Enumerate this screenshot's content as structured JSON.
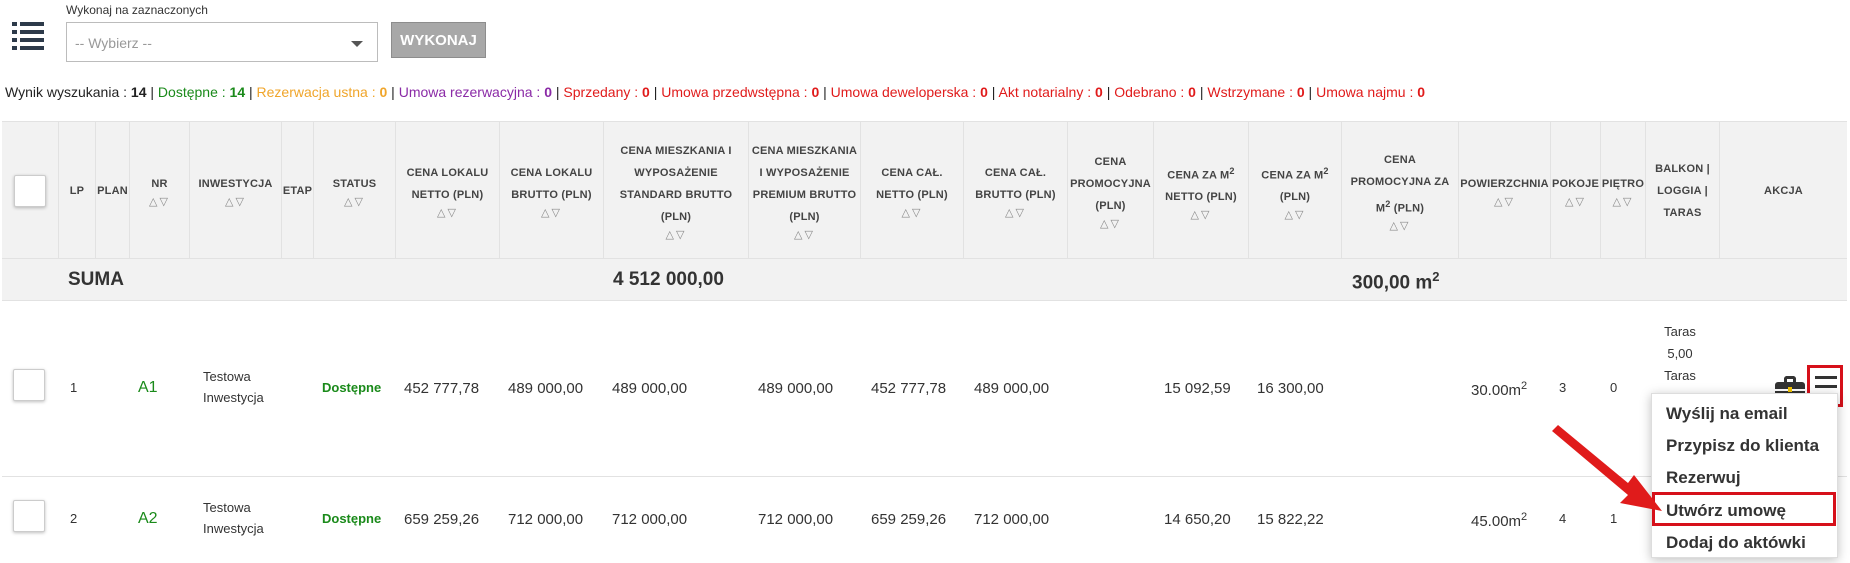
{
  "toolbar": {
    "bulk_label": "Wykonaj na zaznaczonych",
    "bulk_select_value": "-- Wybierz --",
    "execute_label": "WYKONAJ"
  },
  "summary": {
    "results_label": "Wynik wyszukania : ",
    "results_count": "14",
    "sep": " | ",
    "items": [
      {
        "label": "Dostępne : ",
        "count": "14",
        "color": "#1a8a1a"
      },
      {
        "label": "Rezerwacja ustna : ",
        "count": "0",
        "color": "#f0a52a"
      },
      {
        "label": "Umowa rezerwacyjna : ",
        "count": "0",
        "color": "#8a2aa6"
      },
      {
        "label": "Sprzedany : ",
        "count": "0",
        "color": "#e01b1b"
      },
      {
        "label": "Umowa przedwstępna : ",
        "count": "0",
        "color": "#e01b1b"
      },
      {
        "label": "Umowa deweloperska : ",
        "count": "0",
        "color": "#e01b1b"
      },
      {
        "label": "Akt notarialny : ",
        "count": "0",
        "color": "#e01b1b"
      },
      {
        "label": "Odebrano : ",
        "count": "0",
        "color": "#e01b1b"
      },
      {
        "label": "Wstrzymane : ",
        "count": "0",
        "color": "#e01b1b"
      },
      {
        "label": "Umowa najmu : ",
        "count": "0",
        "color": "#e01b1b"
      }
    ]
  },
  "columns": {
    "lp": "LP",
    "plan": "PLAN",
    "nr": "NR",
    "inwestycja": "INWESTYCJA",
    "etap": "ETAP",
    "status": "STATUS",
    "cena_lokalu_netto": "CENA LOKALU NETTO (PLN)",
    "cena_lokalu_brutto": "CENA LOKALU BRUTTO (PLN)",
    "cena_standard": "CENA MIESZKANIA I WYPOSAŻENIE STANDARD BRUTTO (PLN)",
    "cena_premium": "CENA MIESZKANIA I WYPOSAŻENIE PREMIUM BRUTTO (PLN)",
    "cena_cal_netto": "CENA CAŁ. NETTO (PLN)",
    "cena_cal_brutto": "CENA CAŁ. BRUTTO (PLN)",
    "cena_promocyjna": "CENA PROMOCYJNA (PLN)",
    "cena_m2_netto_a": "CENA ZA M",
    "cena_m2_netto_b": " NETTO (PLN)",
    "cena_m2_a": "CENA ZA M",
    "cena_m2_b": " (PLN)",
    "cena_prom_m2_a": "CENA PROMOCYJNA ZA M",
    "cena_prom_m2_b": " (PLN)",
    "sup2": "2",
    "powierzchnia": "POWIERZCHNIA",
    "pokoje": "POKOJE",
    "pietro": "PIĘTRO",
    "balkon": "BALKON | LOGGIA | TARAS",
    "akcja": "AKCJA",
    "sort_glyph": "△▽"
  },
  "suma": {
    "label": "SUMA",
    "total_price": "4 512 000,00",
    "total_area": "300,00 m",
    "area_sup": "2"
  },
  "rows": [
    {
      "lp": "1",
      "nr": "A1",
      "inwestycja_1": "Testowa",
      "inwestycja_2": "Inwestycja",
      "status": "Dostępne",
      "cena_lokalu_netto": "452 777,78",
      "cena_lokalu_brutto": "489 000,00",
      "cena_standard": "489 000,00",
      "cena_premium": "489 000,00",
      "cena_cal_netto": "452 777,78",
      "cena_cal_brutto": "489 000,00",
      "cena_m2_netto": "15 092,59",
      "cena_m2": "16 300,00",
      "powierzchnia": "30.00m",
      "pokoje": "3",
      "pietro": "0",
      "balkon_1": "Taras",
      "balkon_2": "5,00",
      "balkon_3": "Taras"
    },
    {
      "lp": "2",
      "nr": "A2",
      "inwestycja_1": "Testowa",
      "inwestycja_2": "Inwestycja",
      "status": "Dostępne",
      "cena_lokalu_netto": "659 259,26",
      "cena_lokalu_brutto": "712 000,00",
      "cena_standard": "712 000,00",
      "cena_premium": "712 000,00",
      "cena_cal_netto": "659 259,26",
      "cena_cal_brutto": "712 000,00",
      "cena_m2_netto": "14 650,20",
      "cena_m2": "15 822,22",
      "powierzchnia": "45.00m",
      "pokoje": "4",
      "pietro": "1"
    }
  ],
  "action_menu": {
    "items": [
      "Wyślij na email",
      "Przypisz do klienta",
      "Rezerwuj",
      "Utwórz umowę",
      "Dodaj do aktówki"
    ]
  },
  "icons": [
    "list-icon",
    "chevron-down-icon",
    "sort-arrows-icon",
    "briefcase-icon",
    "hamburger-menu-icon",
    "red-arrow-icon"
  ],
  "colors": {
    "highlight_red": "#d6101a",
    "available_green": "#1a8a1a",
    "reservation_orange": "#f0a52a",
    "contract_purple": "#8a2aa6"
  }
}
